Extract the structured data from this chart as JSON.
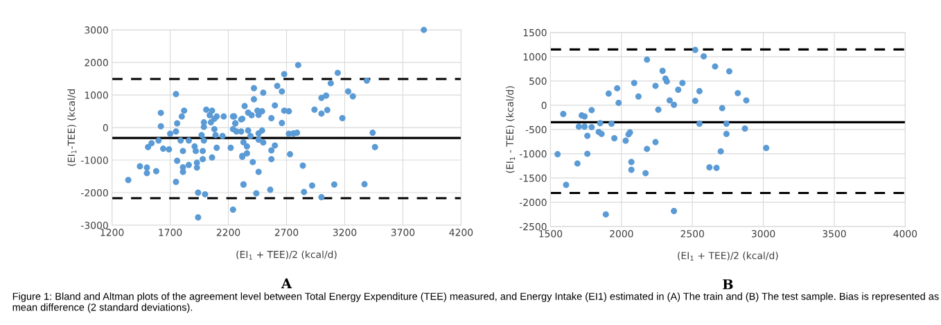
{
  "chart_data": [
    {
      "type": "scatter",
      "title": "A",
      "xlabel": "(EI$_{1}$ + TEE)/2 (kcal/d)",
      "ylabel": "(EI$_{1}$-TEE) (kcal/d",
      "marker": "circle",
      "grid": true,
      "xlim": [
        1200,
        4200
      ],
      "xticks": [
        1200,
        1700,
        2200,
        2700,
        3200,
        3700,
        4200
      ],
      "ylim": [
        -3000,
        3000
      ],
      "yticks": [
        -3000,
        -2000,
        -1000,
        0,
        1000,
        2000,
        3000
      ],
      "ref_lines": [
        {
          "axis": "y",
          "value": 1490,
          "color": "#000000",
          "line_style": "dashed"
        },
        {
          "axis": "y",
          "value": -320,
          "color": "#000000",
          "line_style": "solid"
        },
        {
          "axis": "y",
          "value": -2170,
          "color": "#000000",
          "line_style": "dashed"
        }
      ],
      "annotations": [
        "Figure 1: Bland and Altman plots of the agreement level between Total Energy Expenditure (TEE) measured, and Energy Intake (EI1) estimated in (A) The train and (B) The test sample. Bias is represented as mean difference (2 standard deviations)."
      ],
      "series": [
        {
          "color": "#5b9bd5",
          "x": [
            1340,
            1440,
            1500,
            1500,
            1580,
            1620,
            1620,
            1510,
            1540,
            1600,
            1640,
            1690,
            1750,
            1820,
            1800,
            1760,
            1750,
            1700,
            1790,
            1810,
            1760,
            1810,
            1810,
            1860,
            1750,
            1860,
            1910,
            1920,
            1930,
            1930,
            1940,
            2000,
            1940,
            1970,
            1990,
            1990,
            2010,
            2040,
            2060,
            2050,
            2080,
            2100,
            2080,
            2090,
            1990,
            1980,
            1980,
            2060,
            2100,
            2160,
            2150,
            2220,
            2240,
            2250,
            2260,
            2240,
            2320,
            2310,
            2330,
            2320,
            3880,
            2800,
            3140,
            2680,
            3390,
            3080,
            2620,
            2420,
            2660,
            2500,
            3230,
            3270,
            3000,
            3040,
            2420,
            2340,
            2600,
            2940,
            3000,
            3050,
            2680,
            2720,
            3180,
            2450,
            2490,
            2370,
            2400,
            2460,
            2240,
            2310,
            2260,
            2570,
            2660,
            2370,
            2270,
            2490,
            2460,
            2720,
            2760,
            2790,
            3440,
            2390,
            2460,
            2500,
            2330,
            2360,
            2600,
            2570,
            3460,
            2360,
            2320,
            2730,
            2410,
            2570,
            2840,
            2460,
            2330,
            2560,
            2440,
            2920,
            3110,
            3370,
            2850,
            3000
          ],
          "values": [
            -1610,
            -1190,
            -1230,
            -1400,
            -1340,
            450,
            40,
            -600,
            -480,
            -400,
            -650,
            -670,
            1030,
            520,
            340,
            130,
            -120,
            -190,
            -400,
            -720,
            -1020,
            -1220,
            -1360,
            -1150,
            -1670,
            -400,
            -580,
            -720,
            -1080,
            -1230,
            -2000,
            -2050,
            -2760,
            -230,
            20,
            160,
            550,
            380,
            520,
            160,
            270,
            340,
            -50,
            -230,
            -400,
            -720,
            -970,
            -920,
            -620,
            340,
            -260,
            -620,
            -50,
            340,
            130,
            -2520,
            270,
            -120,
            -1750,
            -900,
            3000,
            1920,
            1680,
            1640,
            1440,
            1360,
            1280,
            1210,
            1110,
            1070,
            1110,
            960,
            910,
            980,
            870,
            660,
            680,
            550,
            430,
            540,
            520,
            500,
            290,
            520,
            500,
            460,
            380,
            390,
            340,
            250,
            130,
            290,
            140,
            -90,
            -120,
            -90,
            -180,
            -190,
            -180,
            -160,
            -160,
            -260,
            -370,
            -460,
            -450,
            -580,
            -550,
            -700,
            -600,
            -790,
            -870,
            -820,
            -1060,
            -970,
            -1170,
            -1360,
            -1750,
            -1910,
            -2020,
            -1780,
            -1750,
            -1740,
            -1980,
            -2140
          ]
        }
      ]
    },
    {
      "type": "scatter",
      "title": "B",
      "xlabel": "(EI$_{1}$ + TEE)/2 (kcal/d)",
      "ylabel": "(EI$_{1}$ - TEE) (kcal/d)",
      "marker": "circle",
      "grid": true,
      "xlim": [
        1500,
        4000
      ],
      "xticks": [
        1500,
        2000,
        2500,
        3000,
        3500,
        4000
      ],
      "ylim": [
        -2500,
        1500
      ],
      "yticks": [
        -2500,
        -2000,
        -1500,
        -1000,
        -500,
        0,
        500,
        1000,
        1500
      ],
      "ref_lines": [
        {
          "axis": "y",
          "value": 1150,
          "color": "#000000",
          "line_style": "dashed"
        },
        {
          "axis": "y",
          "value": -350,
          "color": "#000000",
          "line_style": "solid"
        },
        {
          "axis": "y",
          "value": -1810,
          "color": "#000000",
          "line_style": "dashed"
        }
      ],
      "series": [
        {
          "color": "#5b9bd5",
          "x": [
            1550,
            1590,
            1610,
            1690,
            1700,
            1720,
            1740,
            1740,
            1760,
            1760,
            1790,
            1790,
            1840,
            1860,
            1850,
            1910,
            1930,
            1950,
            1970,
            1980,
            2030,
            2050,
            2060,
            2070,
            2070,
            2090,
            2120,
            2180,
            2180,
            2170,
            2240,
            2240,
            2260,
            2290,
            2310,
            2320,
            2340,
            2370,
            2370,
            2400,
            2430,
            1890,
            2520,
            2520,
            2550,
            2550,
            2580,
            2660,
            2760,
            2820,
            2880,
            2710,
            2740,
            2870,
            2740,
            3020,
            2700,
            2620,
            2670
          ],
          "values": [
            -1010,
            -180,
            -1640,
            -1200,
            -440,
            -210,
            -230,
            -440,
            -630,
            -1000,
            -100,
            -450,
            -550,
            -590,
            -370,
            240,
            -380,
            -680,
            350,
            50,
            -730,
            -600,
            -560,
            -1170,
            -1330,
            460,
            180,
            940,
            -900,
            -1400,
            -760,
            400,
            -90,
            710,
            550,
            490,
            100,
            10,
            -2180,
            320,
            460,
            -2250,
            90,
            1140,
            290,
            -380,
            1010,
            800,
            700,
            250,
            100,
            -60,
            -380,
            -480,
            -590,
            -880,
            -950,
            -1280,
            -1290
          ]
        }
      ]
    }
  ]
}
